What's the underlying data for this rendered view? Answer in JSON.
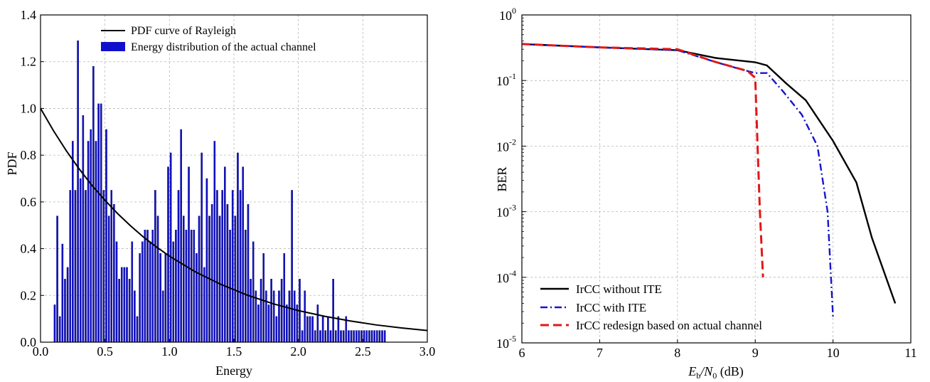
{
  "chart_data": [
    {
      "type": "bar",
      "xlabel": "Energy",
      "ylabel": "PDF",
      "xlim": [
        0,
        3
      ],
      "ylim": [
        0,
        1.4
      ],
      "xticks": [
        "0.0",
        "0.5",
        "1.0",
        "1.5",
        "2.0",
        "2.5",
        "3.0"
      ],
      "yticks": [
        "0.0",
        "0.2",
        "0.4",
        "0.6",
        "0.8",
        "1.0",
        "1.2",
        "1.4"
      ],
      "grid": true,
      "legend_position": "top",
      "series": [
        {
          "name": "PDF curve of Rayleigh",
          "kind": "line",
          "color": "#000000",
          "x": [
            0,
            0.1,
            0.2,
            0.3,
            0.4,
            0.5,
            0.6,
            0.7,
            0.8,
            0.9,
            1.0,
            1.2,
            1.4,
            1.6,
            1.8,
            2.0,
            2.2,
            2.4,
            2.6,
            2.8,
            3.0
          ],
          "y": [
            1.0,
            0.905,
            0.819,
            0.741,
            0.67,
            0.607,
            0.549,
            0.497,
            0.449,
            0.407,
            0.368,
            0.301,
            0.247,
            0.202,
            0.165,
            0.135,
            0.111,
            0.091,
            0.074,
            0.061,
            0.05
          ]
        },
        {
          "name": "Energy distribution of the actual channel",
          "kind": "bar",
          "color": "#1010cc",
          "bar_width": 0.012,
          "x": [
            0.11,
            0.13,
            0.15,
            0.17,
            0.19,
            0.21,
            0.23,
            0.25,
            0.27,
            0.29,
            0.31,
            0.33,
            0.35,
            0.37,
            0.39,
            0.41,
            0.43,
            0.45,
            0.47,
            0.49,
            0.51,
            0.53,
            0.55,
            0.57,
            0.59,
            0.61,
            0.63,
            0.65,
            0.67,
            0.69,
            0.71,
            0.73,
            0.75,
            0.77,
            0.79,
            0.81,
            0.83,
            0.85,
            0.87,
            0.89,
            0.91,
            0.93,
            0.95,
            0.97,
            0.99,
            1.01,
            1.03,
            1.05,
            1.07,
            1.09,
            1.11,
            1.13,
            1.15,
            1.17,
            1.19,
            1.21,
            1.23,
            1.25,
            1.27,
            1.29,
            1.31,
            1.33,
            1.35,
            1.37,
            1.39,
            1.41,
            1.43,
            1.45,
            1.47,
            1.49,
            1.51,
            1.53,
            1.55,
            1.57,
            1.59,
            1.61,
            1.63,
            1.65,
            1.67,
            1.69,
            1.71,
            1.73,
            1.75,
            1.77,
            1.79,
            1.81,
            1.83,
            1.85,
            1.87,
            1.89,
            1.91,
            1.93,
            1.95,
            1.97,
            1.99,
            2.01,
            2.03,
            2.05,
            2.07,
            2.09,
            2.11,
            2.13,
            2.15,
            2.17,
            2.19,
            2.21,
            2.23,
            2.25,
            2.27,
            2.29,
            2.31,
            2.33,
            2.35,
            2.37,
            2.39,
            2.41,
            2.43,
            2.45,
            2.47,
            2.49,
            2.51,
            2.53,
            2.55,
            2.57,
            2.59,
            2.61,
            2.63,
            2.65,
            2.67
          ],
          "y": [
            0.16,
            0.54,
            0.11,
            0.42,
            0.27,
            0.32,
            0.65,
            0.86,
            0.65,
            1.29,
            0.7,
            0.97,
            0.65,
            0.86,
            0.91,
            1.18,
            0.86,
            1.02,
            1.02,
            0.65,
            0.91,
            0.54,
            0.65,
            0.59,
            0.43,
            0.27,
            0.32,
            0.32,
            0.32,
            0.27,
            0.43,
            0.22,
            0.11,
            0.38,
            0.43,
            0.48,
            0.48,
            0.43,
            0.48,
            0.65,
            0.54,
            0.38,
            0.22,
            0.38,
            0.75,
            0.81,
            0.43,
            0.48,
            0.65,
            0.91,
            0.54,
            0.48,
            0.75,
            0.48,
            0.48,
            0.38,
            0.54,
            0.81,
            0.32,
            0.7,
            0.54,
            0.59,
            0.86,
            0.65,
            0.54,
            0.65,
            0.75,
            0.59,
            0.48,
            0.65,
            0.54,
            0.81,
            0.65,
            0.75,
            0.48,
            0.59,
            0.27,
            0.43,
            0.22,
            0.16,
            0.27,
            0.38,
            0.22,
            0.16,
            0.27,
            0.22,
            0.11,
            0.22,
            0.27,
            0.38,
            0.16,
            0.22,
            0.65,
            0.22,
            0.16,
            0.27,
            0.05,
            0.22,
            0.11,
            0.11,
            0.11,
            0.05,
            0.16,
            0.05,
            0.11,
            0.05,
            0.11,
            0.05,
            0.27,
            0.05,
            0.11,
            0.05,
            0.05,
            0.11,
            0.05,
            0.05,
            0.05,
            0.05,
            0.05,
            0.05,
            0.05,
            0.05,
            0.05,
            0.05,
            0.05,
            0.05,
            0.05,
            0.05,
            0.05
          ]
        }
      ]
    },
    {
      "type": "line",
      "xlabel": "E_b/N_0 (dB)",
      "xlabel_parts": {
        "main": "E",
        "sub1": "b",
        "slash": "/N",
        "sub2": "0",
        "unit": " (dB)"
      },
      "ylabel": "BER",
      "xlim": [
        6,
        11
      ],
      "ylim": [
        1e-05,
        1
      ],
      "yscale": "log",
      "xticks": [
        "6",
        "7",
        "8",
        "9",
        "10",
        "11"
      ],
      "yticks": [
        {
          "base": "10",
          "exp": "-5"
        },
        {
          "base": "10",
          "exp": "-4"
        },
        {
          "base": "10",
          "exp": "-3"
        },
        {
          "base": "10",
          "exp": "-2"
        },
        {
          "base": "10",
          "exp": "-1"
        },
        {
          "base": "10",
          "exp": "0"
        }
      ],
      "grid": true,
      "legend_position": "bottom-left",
      "series": [
        {
          "name": "IrCC without ITE",
          "color": "#000000",
          "dash": "solid",
          "x": [
            6,
            7,
            8,
            8.5,
            9,
            9.15,
            9.4,
            9.65,
            10,
            10.3,
            10.5,
            10.8
          ],
          "y": [
            0.36,
            0.32,
            0.29,
            0.22,
            0.19,
            0.17,
            0.09,
            0.05,
            0.012,
            0.0028,
            0.0004,
            4e-05
          ]
        },
        {
          "name": "IrCC with ITE",
          "color": "#1515cc",
          "dash": "dashdot",
          "x": [
            6,
            7,
            8,
            8.5,
            8.8,
            9,
            9.15,
            9.35,
            9.6,
            9.8,
            9.93,
            10.0
          ],
          "y": [
            0.36,
            0.32,
            0.29,
            0.19,
            0.15,
            0.13,
            0.13,
            0.07,
            0.03,
            0.01,
            0.001,
            2.5e-05
          ]
        },
        {
          "name": "IrCC redesign based on actual channel",
          "color": "#e01818",
          "dash": "dashed",
          "x": [
            6,
            7,
            8,
            8.5,
            8.9,
            9.0,
            9.03,
            9.06,
            9.1
          ],
          "y": [
            0.36,
            0.32,
            0.3,
            0.19,
            0.14,
            0.11,
            0.01,
            0.001,
            0.0001
          ]
        }
      ]
    }
  ]
}
